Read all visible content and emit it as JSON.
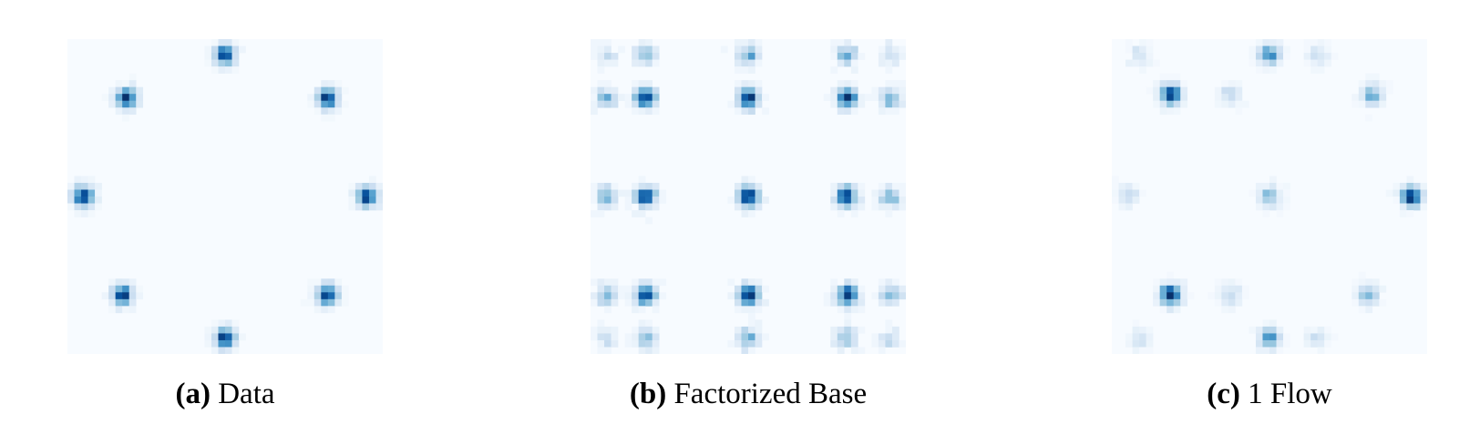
{
  "chart_data": [
    {
      "type": "heatmap",
      "panel_label": "(a)",
      "caption": "Data",
      "colormap": "Blues",
      "bins": 46,
      "xlim": [
        -4,
        4
      ],
      "ylim": [
        -4,
        4
      ],
      "modes": [
        {
          "x": 0.0,
          "y": 3.6,
          "w": 1.0
        },
        {
          "x": -2.5,
          "y": 2.5,
          "w": 1.0
        },
        {
          "x": 2.6,
          "y": 2.5,
          "w": 1.0
        },
        {
          "x": -3.6,
          "y": 0.0,
          "w": 1.0
        },
        {
          "x": 3.6,
          "y": 0.0,
          "w": 1.0
        },
        {
          "x": -2.6,
          "y": -2.5,
          "w": 1.0
        },
        {
          "x": 2.6,
          "y": -2.5,
          "w": 1.0
        },
        {
          "x": 0.0,
          "y": -3.6,
          "w": 1.0
        }
      ]
    },
    {
      "type": "heatmap",
      "panel_label": "(b)",
      "caption": "Factorized Base",
      "colormap": "Blues",
      "bins": 46,
      "xlim": [
        -4,
        4
      ],
      "ylim": [
        -4,
        4
      ],
      "grid_x": [
        -3.6,
        -2.6,
        0.0,
        2.5,
        3.6
      ],
      "grid_y": [
        3.6,
        2.5,
        0.0,
        -2.5,
        -3.6
      ],
      "grid_weights_x": [
        0.35,
        0.9,
        1.0,
        0.9,
        0.35
      ],
      "grid_weights_y": [
        0.35,
        0.9,
        1.0,
        0.9,
        0.35
      ]
    },
    {
      "type": "heatmap",
      "panel_label": "(c)",
      "caption": "1 Flow",
      "colormap": "Blues",
      "bins": 46,
      "xlim": [
        -4,
        4
      ],
      "ylim": [
        -4,
        4
      ],
      "modes": [
        {
          "x": 0.0,
          "y": 3.6,
          "w": 0.6
        },
        {
          "x": -2.5,
          "y": 2.6,
          "w": 1.0
        },
        {
          "x": 2.6,
          "y": 2.6,
          "w": 0.45
        },
        {
          "x": 0.0,
          "y": 0.0,
          "w": 0.35
        },
        {
          "x": 3.6,
          "y": 0.0,
          "w": 1.0
        },
        {
          "x": -2.5,
          "y": -2.5,
          "w": 1.0
        },
        {
          "x": 2.5,
          "y": -2.5,
          "w": 0.4
        },
        {
          "x": 0.0,
          "y": -3.6,
          "w": 0.55
        },
        {
          "x": -1.0,
          "y": 2.6,
          "w": 0.15
        },
        {
          "x": -1.0,
          "y": -2.5,
          "w": 0.15
        },
        {
          "x": -3.6,
          "y": 0.0,
          "w": 0.15
        },
        {
          "x": -3.3,
          "y": 3.6,
          "w": 0.12
        },
        {
          "x": -3.3,
          "y": -3.6,
          "w": 0.12
        },
        {
          "x": 1.2,
          "y": 3.6,
          "w": 0.12
        },
        {
          "x": 1.2,
          "y": -3.6,
          "w": 0.12
        }
      ]
    }
  ]
}
